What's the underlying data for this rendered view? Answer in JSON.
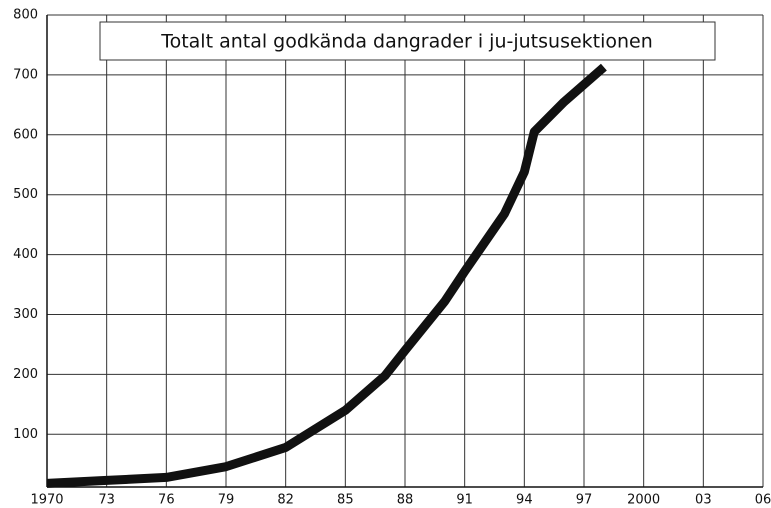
{
  "chart_data": {
    "type": "line",
    "title": "Totalt antal godkända dangrader i ju-jutsusektionen",
    "x": [
      1970,
      1973,
      1976,
      1979,
      1982,
      1985,
      1987,
      1988,
      1990,
      1991,
      1993,
      1994,
      1994.5,
      1996,
      1998
    ],
    "series": [
      {
        "name": "Dangrader",
        "color": "#111111",
        "values": [
          18,
          23,
          28,
          46,
          78,
          140,
          198,
          240,
          322,
          372,
          468,
          538,
          605,
          655,
          713
        ]
      }
    ],
    "xlim": [
      1970,
      2006
    ],
    "xticks": [
      1970,
      {
        "value": 1973,
        "label": "73"
      },
      {
        "value": 1976,
        "label": "76"
      },
      {
        "value": 1979,
        "label": "79"
      },
      {
        "value": 1982,
        "label": "82"
      },
      {
        "value": 1985,
        "label": "85"
      },
      {
        "value": 1988,
        "label": "88"
      },
      {
        "value": 1991,
        "label": "91"
      },
      {
        "value": 1994,
        "label": "94"
      },
      {
        "value": 1997,
        "label": "97"
      },
      2000,
      {
        "value": 2003,
        "label": "03"
      },
      {
        "value": 2006,
        "label": "06"
      }
    ],
    "ylim": [
      12,
      800
    ],
    "yticks": [
      100,
      200,
      300,
      400,
      500,
      600,
      700,
      800
    ],
    "grid": true
  }
}
